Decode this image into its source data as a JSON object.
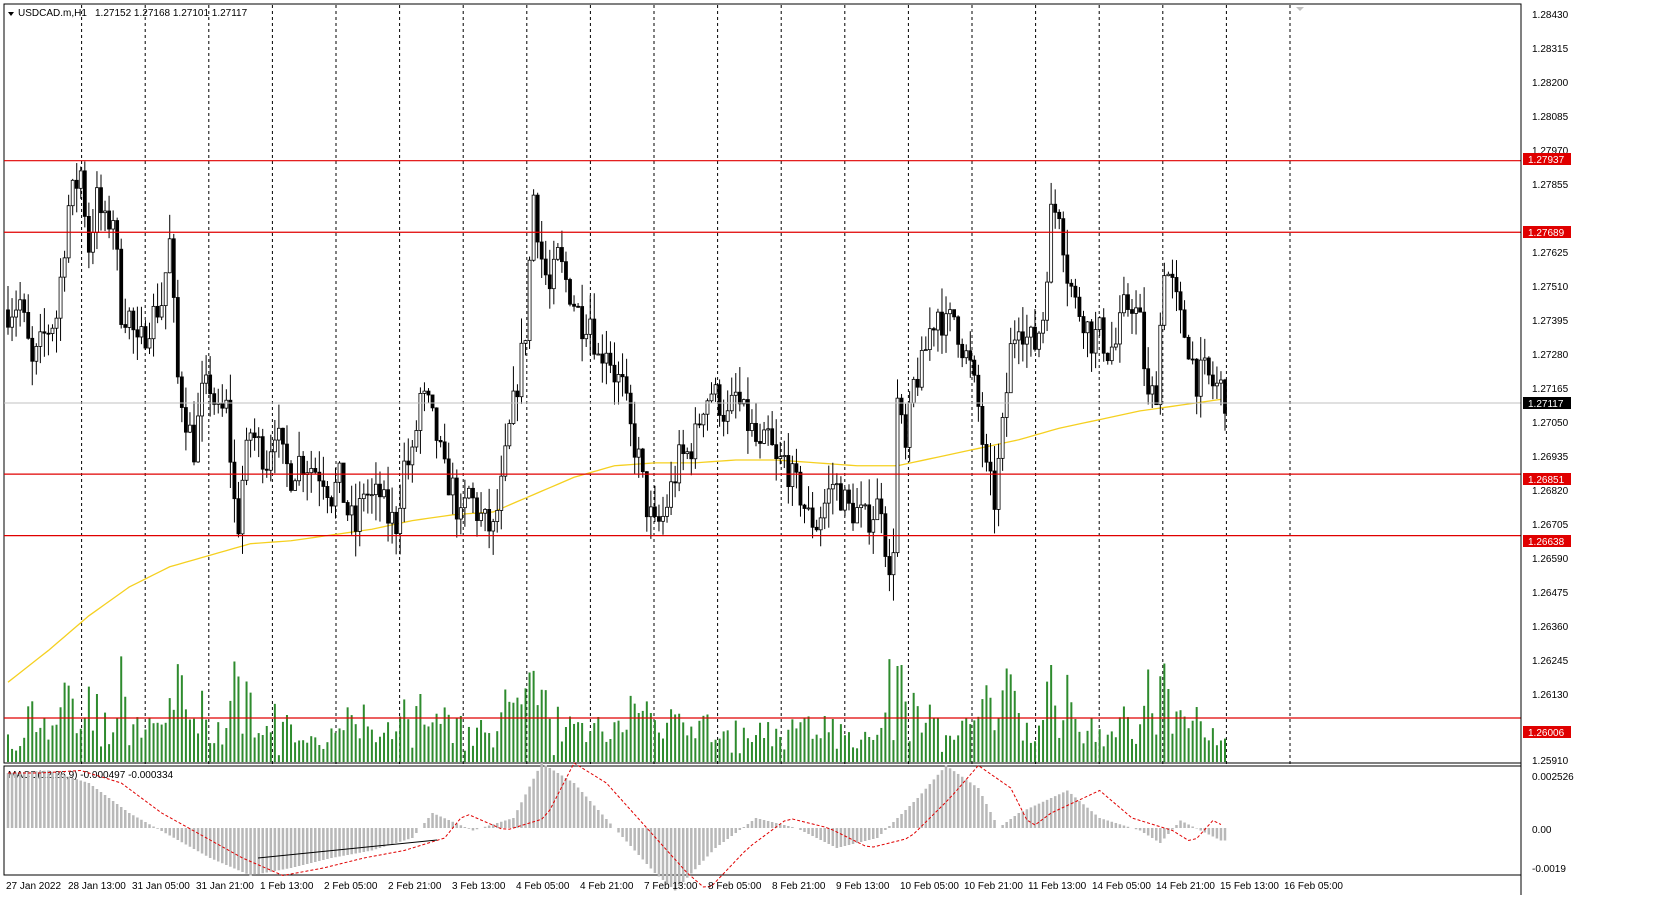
{
  "header": {
    "symbol": "USDCAD.m,H1",
    "ohlc": "1.27152 1.27168 1.27101 1.27117"
  },
  "macd": {
    "label": "MACD(12,26,9) -0.000497 -0.000334",
    "ticks": [
      "0.002526",
      "0.00",
      "-0.0019"
    ]
  },
  "colors": {
    "candle": "#000000",
    "ma": "#f5d020",
    "level_line": "#e00000",
    "level_badge": "#e00000",
    "volume": "#2e8b2e",
    "macd_hist": "#b8b8b8",
    "macd_signal": "#e00000",
    "current_price_badge": "#000000",
    "grid": "#000000"
  },
  "chart_data": {
    "type": "candlestick",
    "symbol": "USDCAD.m",
    "timeframe": "H1",
    "y_ticks": [
      "1.28430",
      "1.28315",
      "1.28200",
      "1.28085",
      "1.27970",
      "1.27855",
      "1.27625",
      "1.27510",
      "1.27395",
      "1.27280",
      "1.27165",
      "1.27050",
      "1.26935",
      "1.26820",
      "1.26705",
      "1.26590",
      "1.26475",
      "1.26360",
      "1.26245",
      "1.26130",
      "1.25910"
    ],
    "ylim": [
      1.2585,
      1.2848
    ],
    "x_ticks": [
      "27 Jan 2022",
      "28 Jan 13:00",
      "31 Jan 05:00",
      "31 Jan 21:00",
      "1 Feb 13:00",
      "2 Feb 05:00",
      "2 Feb 21:00",
      "3 Feb 13:00",
      "4 Feb 05:00",
      "4 Feb 21:00",
      "7 Feb 13:00",
      "8 Feb 05:00",
      "8 Feb 21:00",
      "9 Feb 13:00",
      "10 Feb 05:00",
      "10 Feb 21:00",
      "11 Feb 13:00",
      "14 Feb 05:00",
      "14 Feb 21:00",
      "15 Feb 13:00",
      "16 Feb 05:00"
    ],
    "levels": [
      "1.27937",
      "1.27689",
      "1.26851",
      "1.26638",
      "1.26006"
    ],
    "current_price": "1.27117",
    "price_path": [
      [
        0,
        1.2742
      ],
      [
        3,
        1.2745
      ],
      [
        6,
        1.2722
      ],
      [
        9,
        1.2733
      ],
      [
        12,
        1.274
      ],
      [
        15,
        1.2778
      ],
      [
        18,
        1.279
      ],
      [
        20,
        1.2764
      ],
      [
        22,
        1.278
      ],
      [
        24,
        1.2771
      ],
      [
        26,
        1.2775
      ],
      [
        28,
        1.2742
      ],
      [
        30,
        1.274
      ],
      [
        32,
        1.2728
      ],
      [
        35,
        1.2738
      ],
      [
        38,
        1.2745
      ],
      [
        40,
        1.2765
      ],
      [
        42,
        1.2718
      ],
      [
        44,
        1.2705
      ],
      [
        46,
        1.2694
      ],
      [
        48,
        1.2712
      ],
      [
        50,
        1.2716
      ],
      [
        52,
        1.2705
      ],
      [
        54,
        1.2708
      ],
      [
        56,
        1.2675
      ],
      [
        57,
        1.2668
      ],
      [
        58,
        1.2683
      ],
      [
        60,
        1.27
      ],
      [
        62,
        1.2695
      ],
      [
        64,
        1.269
      ],
      [
        66,
        1.2702
      ],
      [
        68,
        1.269
      ],
      [
        70,
        1.2685
      ],
      [
        72,
        1.269
      ],
      [
        75,
        1.2688
      ],
      [
        78,
        1.2685
      ],
      [
        80,
        1.2678
      ],
      [
        82,
        1.2683
      ],
      [
        84,
        1.2672
      ],
      [
        86,
        1.2666
      ],
      [
        88,
        1.268
      ],
      [
        90,
        1.2676
      ],
      [
        92,
        1.2678
      ],
      [
        94,
        1.267
      ],
      [
        96,
        1.2668
      ],
      [
        98,
        1.2688
      ],
      [
        100,
        1.269
      ],
      [
        102,
        1.2712
      ],
      [
        104,
        1.2708
      ],
      [
        106,
        1.2698
      ],
      [
        108,
        1.2685
      ],
      [
        110,
        1.268
      ],
      [
        112,
        1.2668
      ],
      [
        114,
        1.2679
      ],
      [
        116,
        1.2672
      ],
      [
        118,
        1.2668
      ],
      [
        120,
        1.2665
      ],
      [
        122,
        1.268
      ],
      [
        124,
        1.27
      ],
      [
        126,
        1.2717
      ],
      [
        128,
        1.2735
      ],
      [
        130,
        1.2782
      ],
      [
        132,
        1.276
      ],
      [
        134,
        1.2748
      ],
      [
        136,
        1.276
      ],
      [
        138,
        1.2752
      ],
      [
        140,
        1.2745
      ],
      [
        142,
        1.2738
      ],
      [
        144,
        1.274
      ],
      [
        146,
        1.2725
      ],
      [
        148,
        1.273
      ],
      [
        150,
        1.272
      ],
      [
        152,
        1.2715
      ],
      [
        154,
        1.27
      ],
      [
        156,
        1.269
      ],
      [
        158,
        1.2674
      ],
      [
        160,
        1.2666
      ],
      [
        162,
        1.267
      ],
      [
        164,
        1.268
      ],
      [
        166,
        1.269
      ],
      [
        168,
        1.2692
      ],
      [
        170,
        1.2698
      ],
      [
        172,
        1.271
      ],
      [
        174,
        1.2714
      ],
      [
        176,
        1.271
      ],
      [
        178,
        1.2704
      ],
      [
        180,
        1.2712
      ],
      [
        182,
        1.2705
      ],
      [
        184,
        1.27
      ],
      [
        186,
        1.2692
      ],
      [
        188,
        1.2698
      ],
      [
        190,
        1.2688
      ],
      [
        192,
        1.269
      ],
      [
        194,
        1.2683
      ],
      [
        196,
        1.2678
      ],
      [
        198,
        1.267
      ],
      [
        200,
        1.2668
      ],
      [
        202,
        1.2675
      ],
      [
        204,
        1.2682
      ],
      [
        206,
        1.2678
      ],
      [
        208,
        1.2673
      ],
      [
        210,
        1.2672
      ],
      [
        212,
        1.2669
      ],
      [
        214,
        1.2672
      ],
      [
        216,
        1.2676
      ],
      [
        218,
        1.2647
      ],
      [
        219,
        1.2662
      ],
      [
        220,
        1.271
      ],
      [
        222,
        1.2692
      ],
      [
        224,
        1.2716
      ],
      [
        226,
        1.2722
      ],
      [
        228,
        1.2735
      ],
      [
        230,
        1.2742
      ],
      [
        232,
        1.2736
      ],
      [
        234,
        1.274
      ],
      [
        236,
        1.273
      ],
      [
        238,
        1.2722
      ],
      [
        240,
        1.2708
      ],
      [
        242,
        1.2685
      ],
      [
        244,
        1.2676
      ],
      [
        246,
        1.27
      ],
      [
        248,
        1.2728
      ],
      [
        250,
        1.274
      ],
      [
        252,
        1.2732
      ],
      [
        254,
        1.273
      ],
      [
        256,
        1.274
      ],
      [
        258,
        1.2775
      ],
      [
        260,
        1.2778
      ],
      [
        262,
        1.2755
      ],
      [
        264,
        1.2744
      ],
      [
        266,
        1.274
      ],
      [
        268,
        1.2732
      ],
      [
        270,
        1.2734
      ],
      [
        272,
        1.2728
      ],
      [
        274,
        1.273
      ],
      [
        276,
        1.2742
      ],
      [
        278,
        1.2745
      ],
      [
        280,
        1.2737
      ],
      [
        282,
        1.271
      ],
      [
        284,
        1.2715
      ],
      [
        286,
        1.2758
      ],
      [
        288,
        1.275
      ],
      [
        290,
        1.2738
      ],
      [
        292,
        1.273
      ],
      [
        294,
        1.2718
      ],
      [
        296,
        1.272
      ],
      [
        298,
        1.2716
      ],
      [
        300,
        1.2715
      ],
      [
        301,
        1.2712
      ]
    ],
    "ma_path": [
      [
        0,
        1.2613
      ],
      [
        10,
        1.2624
      ],
      [
        20,
        1.2636
      ],
      [
        30,
        1.2646
      ],
      [
        40,
        1.2653
      ],
      [
        50,
        1.2657
      ],
      [
        60,
        1.2661
      ],
      [
        70,
        1.2662
      ],
      [
        80,
        1.2664
      ],
      [
        90,
        1.2666
      ],
      [
        100,
        1.2669
      ],
      [
        110,
        1.2671
      ],
      [
        120,
        1.2672
      ],
      [
        130,
        1.2678
      ],
      [
        140,
        1.2684
      ],
      [
        150,
        1.2688
      ],
      [
        160,
        1.2689
      ],
      [
        170,
        1.2689
      ],
      [
        180,
        1.269
      ],
      [
        190,
        1.269
      ],
      [
        200,
        1.2689
      ],
      [
        210,
        1.2688
      ],
      [
        220,
        1.2688
      ],
      [
        230,
        1.2691
      ],
      [
        240,
        1.2694
      ],
      [
        250,
        1.2697
      ],
      [
        260,
        1.2701
      ],
      [
        270,
        1.2704
      ],
      [
        280,
        1.2707
      ],
      [
        290,
        1.2709
      ],
      [
        300,
        1.2711
      ]
    ],
    "macd_path": [
      [
        0,
        0.0022
      ],
      [
        10,
        0.0023
      ],
      [
        20,
        0.0018
      ],
      [
        30,
        0.0006
      ],
      [
        40,
        -0.0003
      ],
      [
        50,
        -0.0012
      ],
      [
        60,
        -0.0019
      ],
      [
        70,
        -0.0016
      ],
      [
        80,
        -0.0012
      ],
      [
        90,
        -0.0009
      ],
      [
        100,
        -0.0004
      ],
      [
        105,
        0.0006
      ],
      [
        115,
        -0.0001
      ],
      [
        125,
        0.0004
      ],
      [
        132,
        0.0026
      ],
      [
        140,
        0.0018
      ],
      [
        150,
        0.0
      ],
      [
        160,
        -0.0018
      ],
      [
        165,
        -0.0025
      ],
      [
        175,
        -0.0008
      ],
      [
        185,
        0.0004
      ],
      [
        195,
        0.0
      ],
      [
        205,
        -0.0008
      ],
      [
        215,
        -0.0004
      ],
      [
        225,
        0.0012
      ],
      [
        232,
        0.0025
      ],
      [
        240,
        0.0016
      ],
      [
        245,
        0.0
      ],
      [
        250,
        0.0006
      ],
      [
        262,
        0.0015
      ],
      [
        270,
        0.0004
      ],
      [
        280,
        -0.0001
      ],
      [
        285,
        -0.0006
      ],
      [
        290,
        0.0003
      ],
      [
        300,
        -0.0005
      ]
    ]
  }
}
